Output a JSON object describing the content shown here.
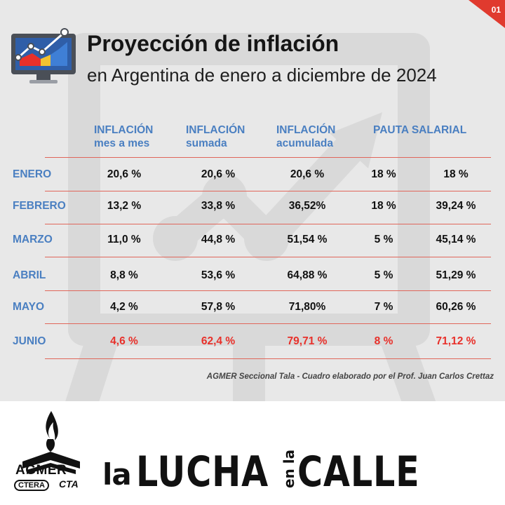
{
  "page_number": "01",
  "header": {
    "title": "Proyección de inflación",
    "subtitle": "en Argentina de enero a diciembre de 2024"
  },
  "columns": [
    {
      "line1": "INFLACIÓN",
      "line2": "mes a mes"
    },
    {
      "line1": "INFLACIÓN",
      "line2": "sumada"
    },
    {
      "line1": "INFLACIÓN",
      "line2": "acumulada"
    },
    {
      "line1": "PAUTA SALARIAL",
      "line2": ""
    }
  ],
  "rows": [
    {
      "month": "ENERO",
      "mes": "20,6 %",
      "sumada": "20,6 %",
      "acumulada": "20,6 %",
      "pauta": "18 %",
      "pauta_acum": "18 %"
    },
    {
      "month": "FEBRERO",
      "mes": "13,2 %",
      "sumada": "33,8 %",
      "acumulada": "36,52%",
      "pauta": "18 %",
      "pauta_acum": "39,24 %"
    },
    {
      "month": "MARZO",
      "mes": "11,0 %",
      "sumada": "44,8 %",
      "acumulada": "51,54 %",
      "pauta": "5 %",
      "pauta_acum": "45,14 %"
    },
    {
      "month": "ABRIL",
      "mes": "8,8 %",
      "sumada": "53,6 %",
      "acumulada": "64,88 %",
      "pauta": "5 %",
      "pauta_acum": "51,29 %"
    },
    {
      "month": "MAYO",
      "mes": "4,2 %",
      "sumada": "57,8 %",
      "acumulada": "71,80%",
      "pauta": "7 %",
      "pauta_acum": "60,26 %"
    },
    {
      "month": "JUNIO",
      "mes": "4,6 %",
      "sumada": "62,4 %",
      "acumulada": "79,71 %",
      "pauta": "8 %",
      "pauta_acum": "71,12 %"
    }
  ],
  "highlight_row": "JUNIO",
  "credit": "AGMER Seccional Tala - Cuadro elaborado por el Prof. Juan Carlos Crettaz",
  "footer": {
    "logo_agmer": "AGMER",
    "logo_ctera": "CTERA",
    "logo_cta": "CTA",
    "slogan_la": "la",
    "slogan_lucha": "LUCHA",
    "slogan_enla": "en la",
    "slogan_calle": "CALLE"
  },
  "colors": {
    "background": "#e8e8e8",
    "accent_red": "#e8302a",
    "header_blue": "#4a7fc1",
    "divider": "#e0665a",
    "text_dark": "#111111"
  },
  "icons": [
    "monitor-chart-icon",
    "agmer-logo-icon",
    "growth-chart-watermark-icon"
  ]
}
